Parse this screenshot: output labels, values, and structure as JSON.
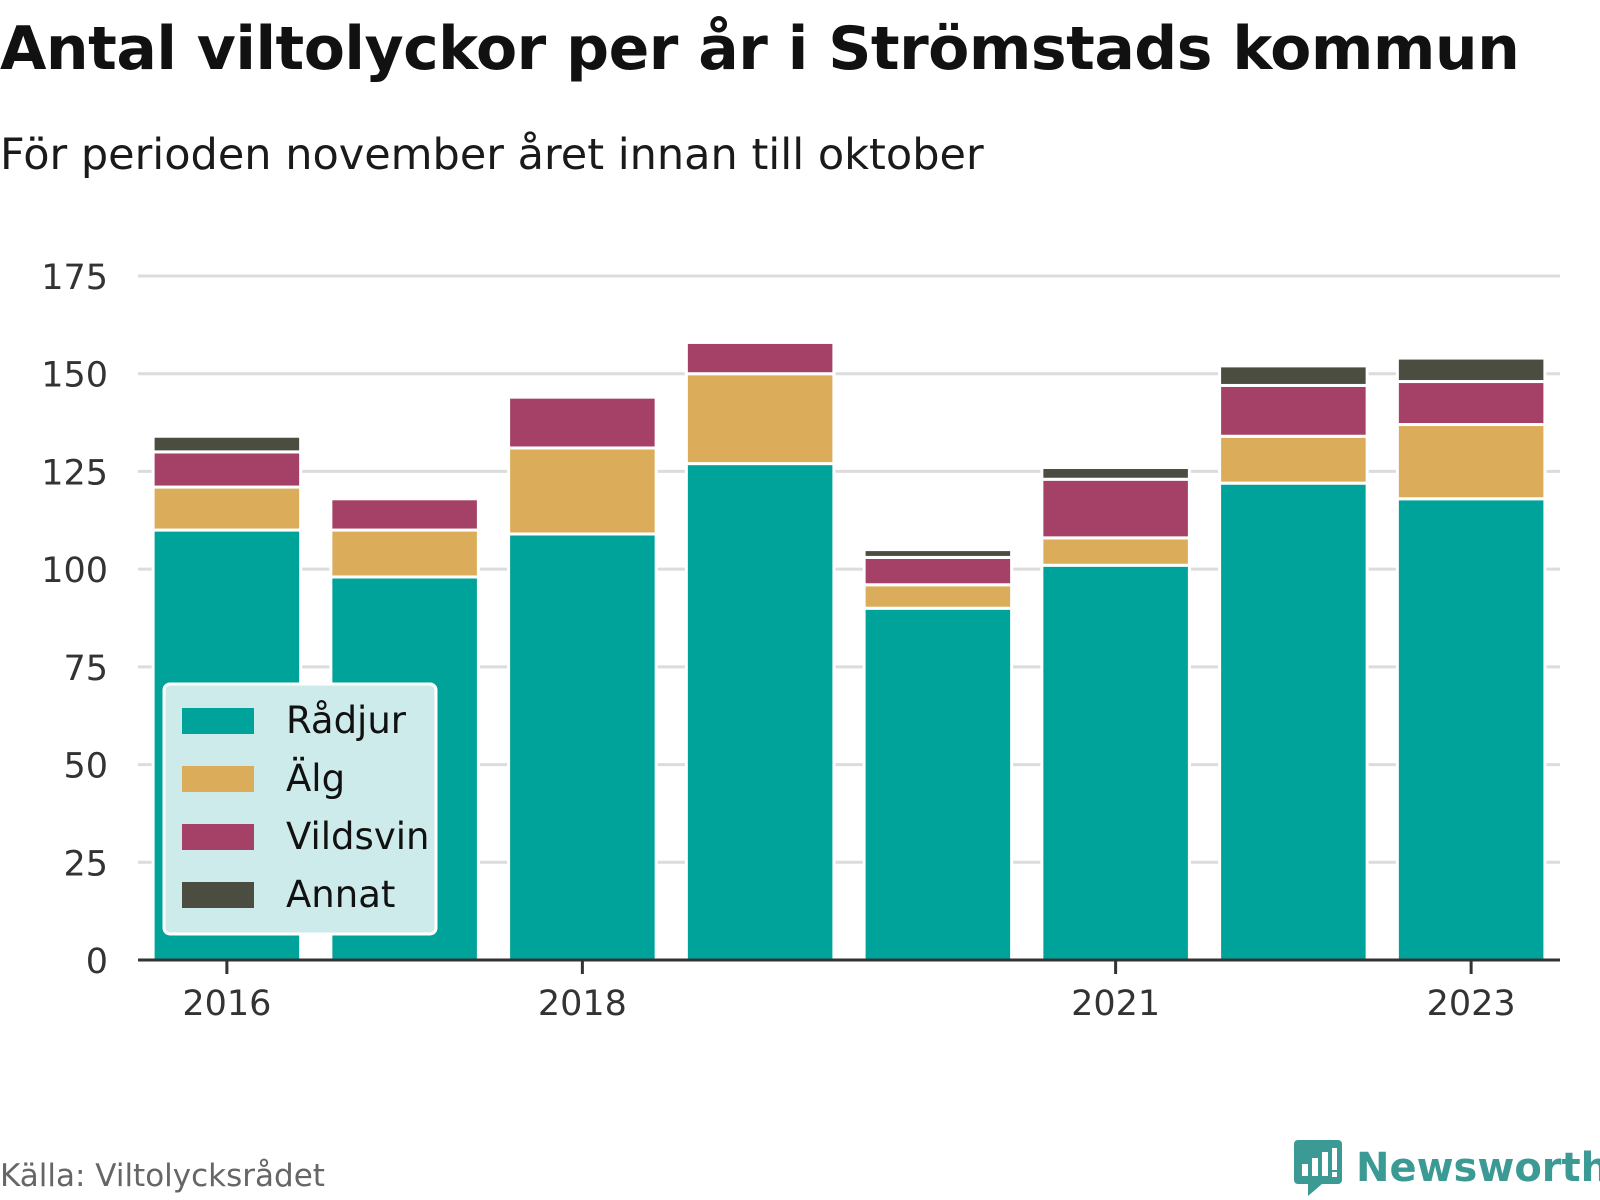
{
  "title": "Antal viltolyckor per år i Strömstads kommun",
  "subtitle": "För perioden november året innan till oktober",
  "source": "Källa: Viltolycksrådet",
  "brand": {
    "name": "Newsworthy",
    "icon": "newsworthy-logo-icon",
    "color": "#3c9a95"
  },
  "chart_data": {
    "type": "bar",
    "stacked": true,
    "categories": [
      "2016",
      "2017",
      "2018",
      "2019",
      "2020",
      "2021",
      "2022",
      "2023"
    ],
    "x_tick_labels": [
      "2016",
      "",
      "2018",
      "",
      "",
      "2021",
      "",
      "2023"
    ],
    "series": [
      {
        "name": "Rådjur",
        "color": "#00a39a",
        "values": [
          110,
          98,
          109,
          127,
          90,
          101,
          122,
          118
        ]
      },
      {
        "name": "Älg",
        "color": "#dbad5b",
        "values": [
          11,
          12,
          22,
          23,
          6,
          7,
          12,
          19
        ]
      },
      {
        "name": "Vildsvin",
        "color": "#a54166",
        "values": [
          9,
          8,
          13,
          8,
          7,
          15,
          13,
          11
        ]
      },
      {
        "name": "Annat",
        "color": "#4b4d41",
        "values": [
          4,
          0,
          0,
          0,
          2,
          3,
          5,
          6
        ]
      }
    ],
    "ylim": [
      0,
      175
    ],
    "y_ticks": [
      0,
      25,
      50,
      75,
      100,
      125,
      150,
      175
    ],
    "xlabel": "",
    "ylabel": "",
    "grid": true,
    "legend_position": "bottom-left"
  }
}
